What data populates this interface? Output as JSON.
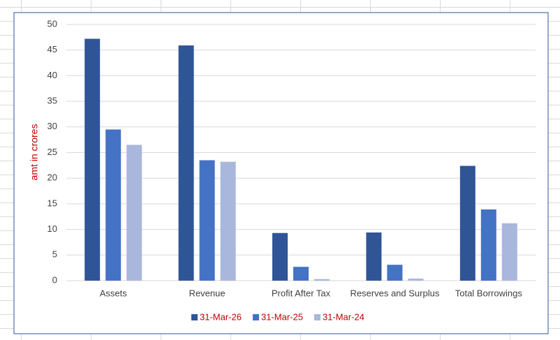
{
  "chart_data": {
    "type": "bar",
    "y_label": "amt in crores",
    "categories": [
      "Assets",
      "Revenue",
      "Profit After Tax",
      "Reserves and Surplus",
      "Total Borrowings"
    ],
    "series": [
      {
        "name": "31-Mar-26",
        "color": "#2f5597",
        "values": [
          47.2,
          45.9,
          9.3,
          9.4,
          22.4
        ]
      },
      {
        "name": "31-Mar-25",
        "color": "#4472c4",
        "values": [
          29.5,
          23.5,
          2.7,
          3.1,
          13.9
        ]
      },
      {
        "name": "31-Mar-24",
        "color": "#a9b7dc",
        "values": [
          26.5,
          23.2,
          0.3,
          0.4,
          11.2
        ]
      }
    ],
    "ylim": [
      0,
      50
    ],
    "yticks": [
      0,
      5,
      10,
      15,
      20,
      25,
      30,
      35,
      40,
      45,
      50
    ],
    "grid": true,
    "legend": "bottom",
    "legend_text_color": "#c00000",
    "y_label_color": "#c00000"
  }
}
